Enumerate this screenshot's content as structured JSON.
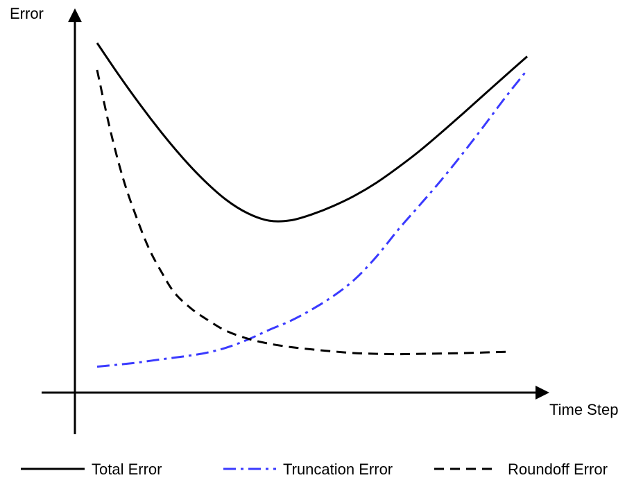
{
  "chart_data": {
    "type": "line",
    "title": "",
    "xlabel": "Time Step",
    "ylabel": "Error",
    "xlim": [
      0,
      100
    ],
    "ylim": [
      0,
      100
    ],
    "grid": false,
    "legend_position": "bottom",
    "series": [
      {
        "name": "Total Error",
        "color": "#000000",
        "style": "solid",
        "x": [
          0,
          5,
          10,
          15,
          20,
          25,
          30,
          35,
          40,
          45,
          50,
          55,
          60,
          65,
          70,
          75,
          80,
          85,
          90,
          95,
          100
        ],
        "y": [
          100,
          90.6,
          81.7,
          73.4,
          65.8,
          59.1,
          53.5,
          49.5,
          47.3,
          47.4,
          49.2,
          51.7,
          54.8,
          58.6,
          63.1,
          68.0,
          73.4,
          79.0,
          84.7,
          90.4,
          96.0
        ]
      },
      {
        "name": "Truncation Error",
        "color": "#3a3aff",
        "style": "dashdot",
        "x": [
          0,
          5,
          10,
          15,
          20,
          25,
          30,
          35,
          40,
          45,
          50,
          55,
          60,
          65,
          70,
          75,
          80,
          85,
          90,
          95,
          100
        ],
        "y": [
          4.0,
          4.6,
          5.3,
          6.2,
          7.0,
          8.0,
          9.6,
          12.0,
          14.9,
          17.6,
          21.0,
          25.0,
          30.0,
          36.7,
          44.6,
          51.9,
          59.3,
          67.2,
          75.5,
          84.0,
          92.0
        ]
      },
      {
        "name": "Roundoff Error",
        "color": "#000000",
        "style": "dashed",
        "x": [
          0,
          3,
          6,
          9,
          12,
          15,
          18,
          22,
          26,
          30,
          35,
          40,
          45,
          50,
          55,
          60,
          65,
          70,
          75,
          80,
          85,
          90,
          95
        ],
        "y": [
          92,
          74.5,
          60.0,
          48.8,
          39.2,
          32.0,
          25.9,
          21.1,
          17.6,
          14.6,
          12.3,
          10.8,
          9.8,
          9.1,
          8.5,
          8.0,
          7.8,
          7.7,
          7.8,
          7.9,
          8.0,
          8.2,
          8.4
        ]
      }
    ]
  }
}
